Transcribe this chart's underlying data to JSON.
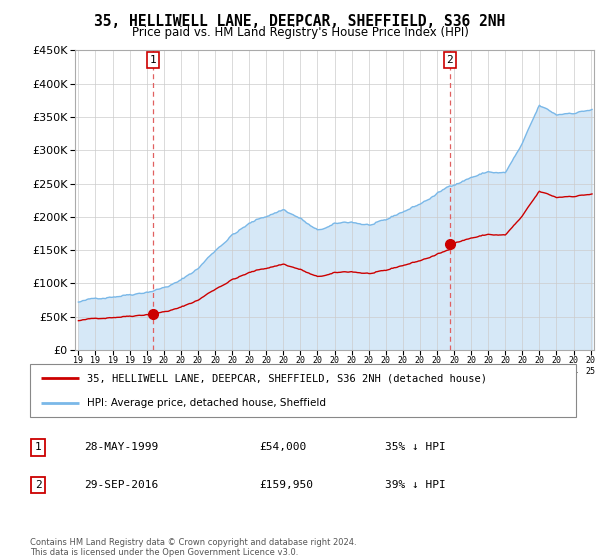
{
  "title": "35, HELLIWELL LANE, DEEPCAR, SHEFFIELD, S36 2NH",
  "subtitle": "Price paid vs. HM Land Registry's House Price Index (HPI)",
  "sale1_date": "28-MAY-1999",
  "sale1_price": 54000,
  "sale1_label": "35% ↓ HPI",
  "sale2_date": "29-SEP-2016",
  "sale2_price": 159950,
  "sale2_label": "39% ↓ HPI",
  "sale1_x": 1999.37,
  "sale2_x": 2016.75,
  "legend_line1": "35, HELLIWELL LANE, DEEPCAR, SHEFFIELD, S36 2NH (detached house)",
  "legend_line2": "HPI: Average price, detached house, Sheffield",
  "footer": "Contains HM Land Registry data © Crown copyright and database right 2024.\nThis data is licensed under the Open Government Licence v3.0.",
  "hpi_color": "#7ab8e8",
  "hpi_fill_color": "#d6e8f7",
  "sale_color": "#cc0000",
  "vline_color": "#e06060",
  "ylim": [
    0,
    450000
  ],
  "yticks": [
    0,
    50000,
    100000,
    150000,
    200000,
    250000,
    300000,
    350000,
    400000,
    450000
  ],
  "xmin": 1995.0,
  "xmax": 2025.2
}
